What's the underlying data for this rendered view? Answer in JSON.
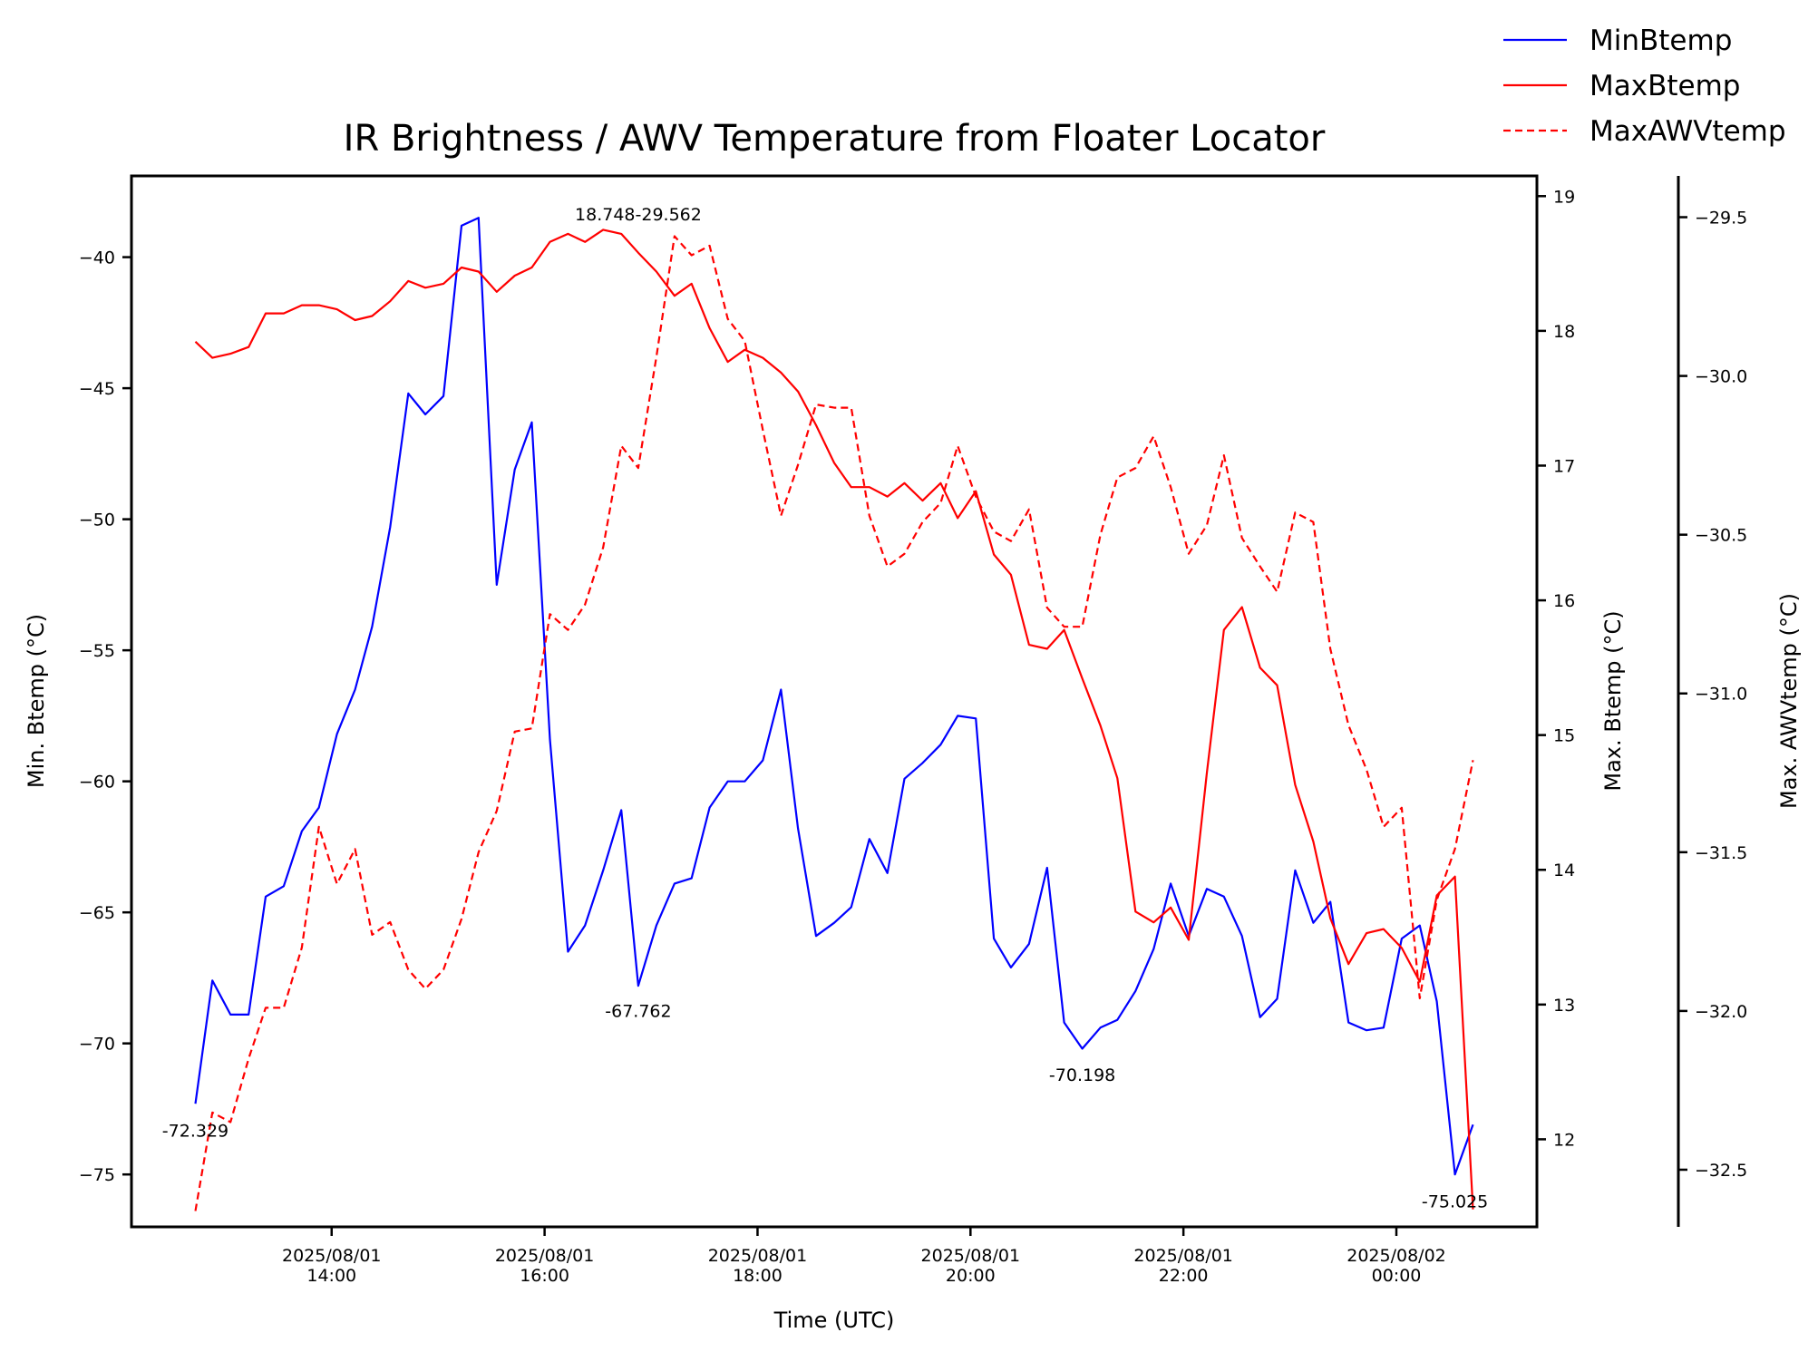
{
  "chart_data": {
    "type": "line",
    "title": "IR Brightness / AWV Temperature from Floater Locator",
    "xlabel": "Time (UTC)",
    "x_ticks": [
      {
        "label": "2025/08/01\n14:00",
        "t": 14.0
      },
      {
        "label": "2025/08/01\n16:00",
        "t": 16.0
      },
      {
        "label": "2025/08/01\n18:00",
        "t": 18.0
      },
      {
        "label": "2025/08/01\n20:00",
        "t": 20.0
      },
      {
        "label": "2025/08/01\n22:00",
        "t": 22.0
      },
      {
        "label": "2025/08/02\n00:00",
        "t": 24.0
      }
    ],
    "xlim": [
      12.12,
      25.32
    ],
    "axes": [
      {
        "id": "left",
        "ylabel": "Min. Btemp (°C)",
        "ylim": [
          -77.0,
          -36.9
        ],
        "ticks": [
          {
            "v": -40,
            "label": "−40"
          },
          {
            "v": -45,
            "label": "−45"
          },
          {
            "v": -50,
            "label": "−50"
          },
          {
            "v": -55,
            "label": "−55"
          },
          {
            "v": -60,
            "label": "−60"
          },
          {
            "v": -65,
            "label": "−65"
          },
          {
            "v": -70,
            "label": "−70"
          },
          {
            "v": -75,
            "label": "−75"
          }
        ]
      },
      {
        "id": "right1",
        "ylabel": "Max. Btemp (°C)",
        "ylim": [
          11.35,
          19.15
        ],
        "ticks": [
          {
            "v": 12,
            "label": "12"
          },
          {
            "v": 13,
            "label": "13"
          },
          {
            "v": 14,
            "label": "14"
          },
          {
            "v": 15,
            "label": "15"
          },
          {
            "v": 16,
            "label": "16"
          },
          {
            "v": 17,
            "label": "17"
          },
          {
            "v": 18,
            "label": "18"
          },
          {
            "v": 19,
            "label": "19"
          }
        ]
      },
      {
        "id": "right2",
        "ylabel": "Max. AWVtemp (°C)",
        "ylim": [
          -32.68,
          -29.37
        ],
        "ticks": [
          {
            "v": -29.5,
            "label": "−29.5"
          },
          {
            "v": -30.0,
            "label": "−30.0"
          },
          {
            "v": -30.5,
            "label": "−30.5"
          },
          {
            "v": -31.0,
            "label": "−31.0"
          },
          {
            "v": -31.5,
            "label": "−31.5"
          },
          {
            "v": -32.0,
            "label": "−32.0"
          },
          {
            "v": -32.5,
            "label": "−32.5"
          }
        ]
      }
    ],
    "x": [
      12.72,
      12.88,
      13.05,
      13.22,
      13.38,
      13.55,
      13.72,
      13.88,
      14.05,
      14.22,
      14.38,
      14.55,
      14.72,
      14.88,
      15.05,
      15.22,
      15.38,
      15.55,
      15.72,
      15.88,
      16.05,
      16.22,
      16.38,
      16.55,
      16.72,
      16.88,
      17.05,
      17.22,
      17.38,
      17.55,
      17.72,
      17.88,
      18.05,
      18.22,
      18.38,
      18.55,
      18.72,
      18.88,
      19.05,
      19.22,
      19.38,
      19.55,
      19.72,
      19.88,
      20.05,
      20.22,
      20.38,
      20.55,
      20.72,
      20.88,
      21.05,
      21.22,
      21.38,
      21.55,
      21.72,
      21.88,
      22.05,
      22.22,
      22.38,
      22.55,
      22.72,
      22.88,
      23.05,
      23.22,
      23.38,
      23.55,
      23.72,
      23.88,
      24.05,
      24.22,
      24.38,
      24.55,
      24.72
    ],
    "series": [
      {
        "name": "MinBtemp",
        "axis": "left",
        "color": "#0000ff",
        "dash": "solid",
        "values": [
          -72.3,
          -67.6,
          -68.9,
          -68.9,
          -64.4,
          -64.0,
          -61.9,
          -61.0,
          -58.2,
          -56.5,
          -54.1,
          -50.3,
          -45.2,
          -46.0,
          -45.3,
          -38.8,
          -38.5,
          -52.5,
          -48.1,
          -46.3,
          -58.4,
          -66.5,
          -65.5,
          -63.4,
          -61.1,
          -67.8,
          -65.5,
          -63.9,
          -63.7,
          -61.0,
          -60.0,
          -60.0,
          -59.2,
          -56.5,
          -61.8,
          -65.9,
          -65.4,
          -64.8,
          -62.2,
          -63.5,
          -59.9,
          -59.3,
          -58.6,
          -57.5,
          -57.6,
          -66.0,
          -67.1,
          -66.2,
          -63.3,
          -69.2,
          -70.2,
          -69.4,
          -69.1,
          -68.0,
          -66.4,
          -63.9,
          -65.9,
          -64.1,
          -64.4,
          -65.9,
          -69.0,
          -68.3,
          -63.4,
          -65.4,
          -64.6,
          -69.2,
          -69.5,
          -69.4,
          -66.0,
          -65.5,
          -68.4,
          -75.0,
          -73.1
        ]
      },
      {
        "name": "MaxBtemp",
        "axis": "right1",
        "color": "#ff0000",
        "dash": "solid",
        "values": [
          17.92,
          17.8,
          17.83,
          17.88,
          18.13,
          18.13,
          18.19,
          18.19,
          18.16,
          18.08,
          18.11,
          18.22,
          18.37,
          18.32,
          18.35,
          18.47,
          18.44,
          18.29,
          18.41,
          18.47,
          18.66,
          18.72,
          18.66,
          18.75,
          18.72,
          18.58,
          18.44,
          18.26,
          18.35,
          18.02,
          17.77,
          17.86,
          17.8,
          17.69,
          17.55,
          17.3,
          17.02,
          16.84,
          16.84,
          16.77,
          16.87,
          16.74,
          16.87,
          16.61,
          16.81,
          16.34,
          16.19,
          15.67,
          15.64,
          15.78,
          15.42,
          15.07,
          14.68,
          13.69,
          13.61,
          13.72,
          13.48,
          14.72,
          15.78,
          15.95,
          15.5,
          15.37,
          14.63,
          14.21,
          13.64,
          13.3,
          13.53,
          13.56,
          13.42,
          13.17,
          13.81,
          13.95,
          11.48
        ]
      },
      {
        "name": "MaxAWVtemp",
        "axis": "right2",
        "color": "#ff0000",
        "dash": "dashed",
        "values": [
          -32.63,
          -32.32,
          -32.35,
          -32.15,
          -31.99,
          -31.99,
          -31.8,
          -31.42,
          -31.6,
          -31.49,
          -31.76,
          -31.72,
          -31.87,
          -31.93,
          -31.87,
          -31.71,
          -31.5,
          -31.37,
          -31.12,
          -31.11,
          -30.75,
          -30.8,
          -30.72,
          -30.54,
          -30.22,
          -30.29,
          -29.94,
          -29.56,
          -29.62,
          -29.59,
          -29.82,
          -29.89,
          -30.17,
          -30.44,
          -30.28,
          -30.09,
          -30.1,
          -30.1,
          -30.44,
          -30.6,
          -30.56,
          -30.46,
          -30.4,
          -30.22,
          -30.38,
          -30.49,
          -30.52,
          -30.42,
          -30.73,
          -30.79,
          -30.79,
          -30.5,
          -30.32,
          -30.29,
          -30.19,
          -30.35,
          -30.56,
          -30.47,
          -30.25,
          -30.51,
          -30.6,
          -30.68,
          -30.43,
          -30.46,
          -30.86,
          -31.1,
          -31.24,
          -31.42,
          -31.36,
          -31.96,
          -31.65,
          -31.49,
          -31.21
        ]
      }
    ],
    "annotations": [
      {
        "text": "18.748-29.562",
        "t": 16.88,
        "axis": "right1",
        "v": 18.75,
        "dy": -0.8
      },
      {
        "text": "-72.329",
        "t": 12.72,
        "axis": "left",
        "v": -72.33,
        "dy": 1.3
      },
      {
        "text": "-67.762",
        "t": 16.88,
        "axis": "left",
        "v": -67.76,
        "dy": 1.3
      },
      {
        "text": "-70.198",
        "t": 21.05,
        "axis": "left",
        "v": -70.2,
        "dy": 1.3
      },
      {
        "text": "-75.025",
        "t": 24.55,
        "axis": "left",
        "v": -75.03,
        "dy": 1.3
      }
    ],
    "legend": {
      "position": "top-right",
      "entries": [
        "MinBtemp",
        "MaxBtemp",
        "MaxAWVtemp"
      ]
    },
    "grid": false
  }
}
